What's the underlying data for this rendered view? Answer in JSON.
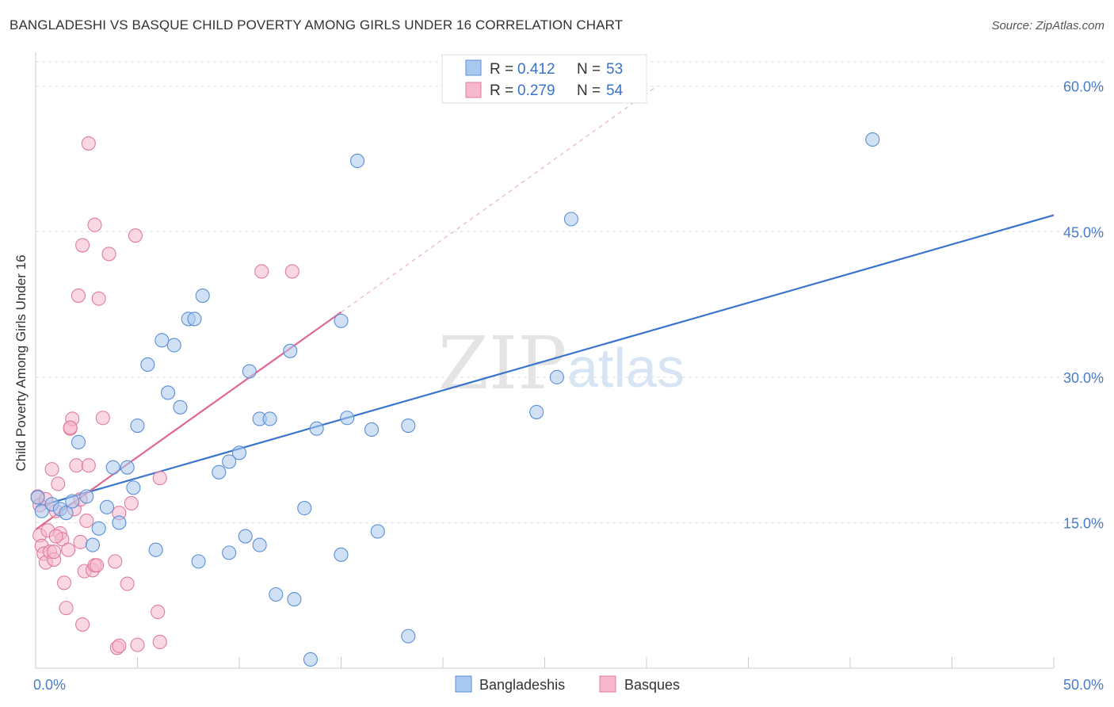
{
  "header": {
    "title": "BANGLADESHI VS BASQUE CHILD POVERTY AMONG GIRLS UNDER 16 CORRELATION CHART",
    "source": "Source: ZipAtlas.com"
  },
  "watermark": {
    "zip": "ZIP",
    "atlas": "atlas"
  },
  "legend": {
    "r_label": "R =",
    "n_label": "N =",
    "series": [
      {
        "name": "Bangladeshis",
        "r": "0.412",
        "n": "53"
      },
      {
        "name": "Basques",
        "r": "0.279",
        "n": "54"
      }
    ]
  },
  "colors": {
    "bangladeshis_fill": "#a9c8ef",
    "bangladeshis_stroke": "#5b8fd6",
    "bangladeshis_line": "#3a74cc",
    "basques_fill": "#f6b8cc",
    "basques_stroke": "#e07b9c",
    "basques_line": "#e06890",
    "grid": "#dddddd",
    "axis_label": "#4a7cc9"
  },
  "chart_data": {
    "type": "scatter",
    "title": "BANGLADESHI VS BASQUE CHILD POVERTY AMONG GIRLS UNDER 16 CORRELATION CHART",
    "xlabel": "",
    "ylabel": "Child Poverty Among Girls Under 16",
    "xlim": [
      0,
      50
    ],
    "ylim": [
      0,
      63
    ],
    "x_tick_labels": [
      "0.0%",
      "50.0%"
    ],
    "y_ticks": [
      15,
      30,
      45,
      60
    ],
    "y_tick_labels": [
      "15.0%",
      "30.0%",
      "45.0%",
      "60.0%"
    ],
    "series": [
      {
        "name": "Bangladeshis",
        "trend": {
          "x": [
            0,
            50
          ],
          "y": [
            16.6,
            46.7
          ]
        },
        "points": [
          [
            0.1,
            17.6
          ],
          [
            0.3,
            16.2
          ],
          [
            0.8,
            16.9
          ],
          [
            1.2,
            16.4
          ],
          [
            1.5,
            16.0
          ],
          [
            1.8,
            17.2
          ],
          [
            2.1,
            23.3
          ],
          [
            2.5,
            17.7
          ],
          [
            2.8,
            12.7
          ],
          [
            3.1,
            14.4
          ],
          [
            3.5,
            16.6
          ],
          [
            3.8,
            20.7
          ],
          [
            4.1,
            15.0
          ],
          [
            4.5,
            20.7
          ],
          [
            4.8,
            18.6
          ],
          [
            5.0,
            25.0
          ],
          [
            5.5,
            31.3
          ],
          [
            5.9,
            12.2
          ],
          [
            6.2,
            33.8
          ],
          [
            6.5,
            28.4
          ],
          [
            6.8,
            33.3
          ],
          [
            7.1,
            26.9
          ],
          [
            7.5,
            36.0
          ],
          [
            7.8,
            36.0
          ],
          [
            8.0,
            11.0
          ],
          [
            8.2,
            38.4
          ],
          [
            9.0,
            20.2
          ],
          [
            9.5,
            21.3
          ],
          [
            9.5,
            11.9
          ],
          [
            10.0,
            22.2
          ],
          [
            10.3,
            13.6
          ],
          [
            10.5,
            30.6
          ],
          [
            11.0,
            25.7
          ],
          [
            11.0,
            12.7
          ],
          [
            11.5,
            25.7
          ],
          [
            11.8,
            7.6
          ],
          [
            12.5,
            32.7
          ],
          [
            12.7,
            7.1
          ],
          [
            13.2,
            16.5
          ],
          [
            13.5,
            0.9
          ],
          [
            13.8,
            24.7
          ],
          [
            15.0,
            35.8
          ],
          [
            15.0,
            11.7
          ],
          [
            15.3,
            25.8
          ],
          [
            15.8,
            52.3
          ],
          [
            16.5,
            24.6
          ],
          [
            16.8,
            14.1
          ],
          [
            18.3,
            25.0
          ],
          [
            18.3,
            3.3
          ],
          [
            24.6,
            26.4
          ],
          [
            25.6,
            30.0
          ],
          [
            26.3,
            46.3
          ],
          [
            41.1,
            54.5
          ]
        ]
      },
      {
        "name": "Basques",
        "trend": {
          "x": [
            0,
            15
          ],
          "y": [
            14.3,
            36.7
          ]
        },
        "trend_extension": {
          "x": [
            15,
            30.5
          ],
          "y": [
            36.7,
            60.0
          ]
        },
        "points": [
          [
            0.1,
            17.7
          ],
          [
            0.2,
            13.7
          ],
          [
            0.3,
            12.6
          ],
          [
            0.4,
            11.8
          ],
          [
            0.5,
            10.9
          ],
          [
            0.6,
            14.2
          ],
          [
            0.7,
            12.0
          ],
          [
            0.8,
            20.5
          ],
          [
            0.9,
            11.2
          ],
          [
            1.0,
            16.2
          ],
          [
            1.1,
            19.0
          ],
          [
            1.2,
            13.9
          ],
          [
            1.3,
            13.3
          ],
          [
            1.4,
            8.8
          ],
          [
            1.5,
            6.2
          ],
          [
            1.6,
            12.2
          ],
          [
            1.7,
            24.7
          ],
          [
            1.8,
            25.7
          ],
          [
            1.9,
            16.4
          ],
          [
            2.0,
            20.9
          ],
          [
            2.1,
            38.4
          ],
          [
            2.2,
            13.0
          ],
          [
            2.3,
            4.5
          ],
          [
            2.3,
            43.6
          ],
          [
            2.4,
            10.0
          ],
          [
            2.5,
            15.2
          ],
          [
            2.6,
            54.1
          ],
          [
            2.6,
            20.9
          ],
          [
            2.8,
            10.1
          ],
          [
            2.9,
            10.6
          ],
          [
            2.9,
            45.7
          ],
          [
            3.0,
            10.6
          ],
          [
            3.1,
            38.1
          ],
          [
            3.3,
            25.8
          ],
          [
            3.6,
            42.7
          ],
          [
            3.9,
            11.0
          ],
          [
            4.0,
            2.1
          ],
          [
            4.1,
            2.3
          ],
          [
            4.1,
            16.0
          ],
          [
            4.5,
            8.7
          ],
          [
            4.7,
            17.0
          ],
          [
            4.9,
            44.6
          ],
          [
            5.0,
            2.4
          ],
          [
            6.0,
            5.8
          ],
          [
            6.1,
            19.6
          ],
          [
            6.1,
            2.7
          ],
          [
            11.1,
            40.9
          ],
          [
            12.6,
            40.9
          ],
          [
            0.2,
            16.8
          ],
          [
            0.5,
            17.4
          ],
          [
            0.9,
            12.0
          ],
          [
            1.7,
            24.8
          ],
          [
            2.2,
            17.4
          ],
          [
            1.0,
            13.6
          ]
        ]
      }
    ]
  },
  "bottom_legend": {
    "items": [
      "Bangladeshis",
      "Basques"
    ]
  }
}
